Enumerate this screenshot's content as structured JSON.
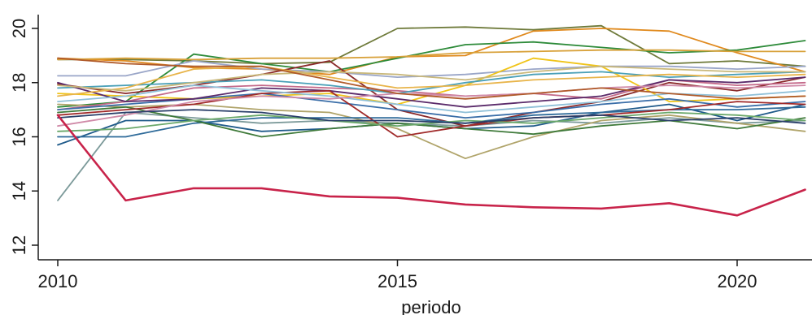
{
  "chart_data": {
    "type": "line",
    "title": "",
    "xlabel": "periodo",
    "ylabel": "",
    "xlim": [
      2010,
      2021
    ],
    "ylim": [
      12,
      20
    ],
    "xticks": [
      2010,
      2015,
      2020
    ],
    "yticks": [
      12,
      14,
      16,
      18,
      20
    ],
    "grid": false,
    "x": [
      2010,
      2011,
      2012,
      2013,
      2014,
      2015,
      2016,
      2017,
      2018,
      2019,
      2020,
      2021
    ],
    "series": [
      {
        "color": "#c8234a",
        "values": [
          16.8,
          13.65,
          14.1,
          14.1,
          13.8,
          13.75,
          13.5,
          13.4,
          13.35,
          13.55,
          13.1,
          14.05
        ],
        "strong": true
      },
      {
        "color": "#7c9a9a",
        "values": [
          13.65,
          16.9,
          16.7,
          16.5,
          16.6,
          16.5,
          16.4,
          16.6,
          16.5,
          16.7,
          16.5,
          16.6
        ]
      },
      {
        "color": "#6e7a3a",
        "values": [
          18.85,
          18.85,
          18.8,
          18.7,
          18.75,
          20.0,
          20.05,
          19.95,
          20.1,
          18.7,
          18.8,
          18.6
        ]
      },
      {
        "color": "#e08a1e",
        "values": [
          18.9,
          18.8,
          18.55,
          18.5,
          18.3,
          18.95,
          19.0,
          19.9,
          20.0,
          19.9,
          19.1,
          18.4
        ]
      },
      {
        "color": "#2e8b3a",
        "values": [
          17.1,
          17.3,
          19.05,
          18.7,
          18.4,
          18.9,
          19.4,
          19.5,
          19.3,
          19.1,
          19.2,
          19.55
        ]
      },
      {
        "color": "#d8a13a",
        "values": [
          18.85,
          18.9,
          18.85,
          18.9,
          18.9,
          18.95,
          19.1,
          19.15,
          19.2,
          19.2,
          19.15,
          19.15
        ]
      },
      {
        "color": "#9aa6c8",
        "values": [
          18.25,
          18.25,
          18.8,
          18.5,
          18.4,
          18.2,
          18.3,
          18.5,
          18.6,
          18.6,
          18.5,
          18.6
        ]
      },
      {
        "color": "#8a2a2a",
        "values": [
          17.95,
          17.6,
          17.9,
          18.3,
          18.8,
          17.0,
          16.4,
          16.9,
          17.3,
          18.0,
          17.7,
          18.2
        ]
      },
      {
        "color": "#f0c419",
        "values": [
          17.6,
          17.5,
          17.4,
          17.5,
          17.6,
          17.2,
          17.9,
          18.9,
          18.6,
          17.3,
          17.4,
          17.5
        ]
      },
      {
        "color": "#b0a46a",
        "values": [
          17.2,
          17.1,
          17.2,
          17.0,
          16.9,
          16.3,
          15.2,
          16.0,
          16.6,
          16.8,
          16.5,
          16.2
        ]
      },
      {
        "color": "#c46a8a",
        "values": [
          17.0,
          17.3,
          17.8,
          17.9,
          17.8,
          17.7,
          17.5,
          17.6,
          17.4,
          18.1,
          17.9,
          18.0
        ]
      },
      {
        "color": "#3a6ea8",
        "values": [
          17.0,
          17.2,
          17.4,
          17.6,
          17.3,
          17.0,
          16.7,
          16.9,
          17.2,
          17.4,
          17.1,
          17.3
        ]
      },
      {
        "color": "#4aa0b8",
        "values": [
          17.8,
          17.9,
          18.0,
          18.1,
          17.9,
          17.6,
          18.0,
          18.3,
          18.4,
          18.2,
          18.3,
          18.4
        ]
      },
      {
        "color": "#1f5a8a",
        "values": [
          15.7,
          16.6,
          16.6,
          16.2,
          16.3,
          16.5,
          16.3,
          16.4,
          16.9,
          17.2,
          16.6,
          17.2
        ]
      },
      {
        "color": "#2f6b9a",
        "values": [
          16.0,
          16.0,
          16.5,
          16.7,
          16.7,
          16.7,
          16.5,
          16.8,
          16.9,
          17.0,
          17.0,
          17.1
        ]
      },
      {
        "color": "#3f7a3a",
        "values": [
          16.9,
          17.1,
          16.6,
          16.0,
          16.3,
          16.5,
          16.3,
          16.1,
          16.4,
          16.6,
          16.3,
          16.7
        ]
      },
      {
        "color": "#5a2a6a",
        "values": [
          18.0,
          17.3,
          17.4,
          17.8,
          17.7,
          17.4,
          17.1,
          17.3,
          17.5,
          18.1,
          18.0,
          18.2
        ]
      },
      {
        "color": "#a02a2a",
        "values": [
          16.8,
          17.0,
          17.2,
          17.6,
          17.7,
          16.0,
          16.4,
          16.7,
          16.8,
          17.0,
          17.3,
          17.2
        ]
      },
      {
        "color": "#e8b44a",
        "values": [
          17.5,
          17.8,
          18.5,
          18.6,
          18.2,
          17.8,
          17.9,
          18.1,
          18.2,
          18.3,
          18.2,
          18.3
        ]
      },
      {
        "color": "#8fc0d8",
        "values": [
          17.3,
          17.5,
          17.9,
          17.7,
          17.5,
          17.2,
          16.9,
          17.1,
          17.3,
          17.6,
          17.5,
          17.7
        ]
      },
      {
        "color": "#d08aa8",
        "values": [
          16.4,
          16.8,
          17.3,
          17.5,
          17.4,
          17.6,
          17.5,
          17.6,
          17.8,
          17.9,
          17.8,
          17.9
        ]
      },
      {
        "color": "#6aa86a",
        "values": [
          16.2,
          16.3,
          16.6,
          16.8,
          16.6,
          16.4,
          16.6,
          16.5,
          16.7,
          16.9,
          16.8,
          16.6
        ]
      },
      {
        "color": "#2a3f6a",
        "values": [
          16.7,
          16.9,
          17.0,
          16.9,
          16.6,
          16.6,
          16.5,
          16.7,
          16.8,
          16.6,
          16.7,
          16.5
        ]
      },
      {
        "color": "#c9b87a",
        "values": [
          17.9,
          17.7,
          18.0,
          18.3,
          18.4,
          18.3,
          18.1,
          18.4,
          18.6,
          18.5,
          18.4,
          18.4
        ]
      },
      {
        "color": "#b05a2a",
        "values": [
          18.9,
          18.7,
          18.6,
          18.6,
          18.1,
          17.6,
          17.4,
          17.6,
          17.8,
          17.6,
          17.4,
          17.5
        ]
      }
    ]
  }
}
